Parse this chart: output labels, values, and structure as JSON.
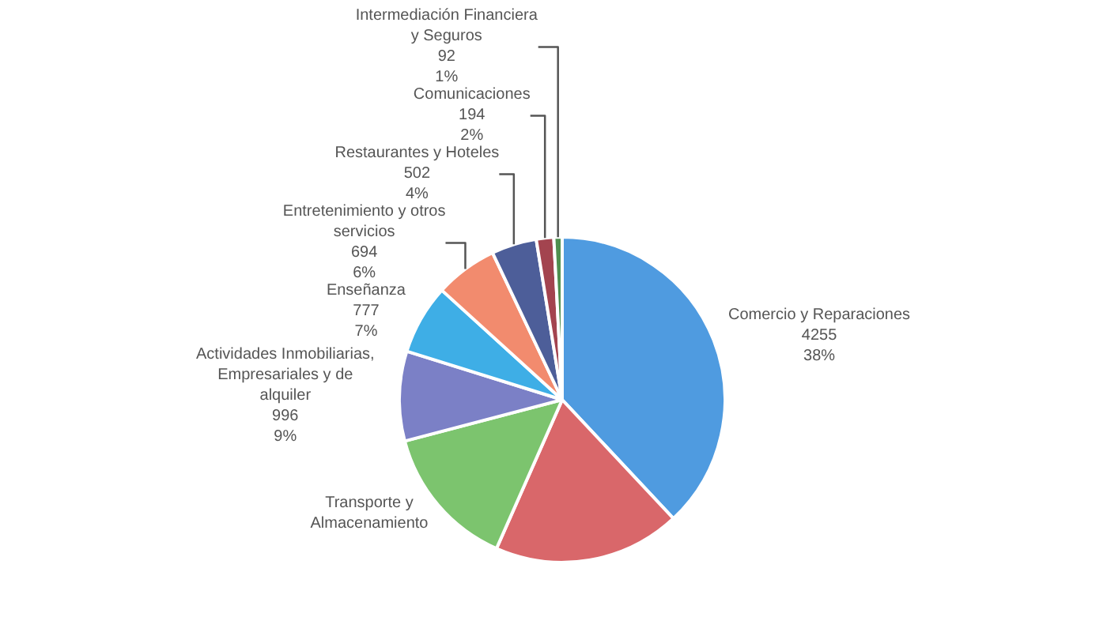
{
  "chart_data": {
    "type": "pie",
    "categories": [
      "Comercio y Reparaciones",
      null,
      "Transporte y Almacenamiento",
      "Actividades Inmobiliarias, Empresariales y de alquiler",
      "Enseñanza",
      "Entretenimiento y otros servicios",
      "Restaurantes y Hoteles",
      "Comunicaciones",
      "Intermediación Financiera y Seguros"
    ],
    "values": [
      4255,
      2080,
      1600,
      996,
      777,
      694,
      502,
      194,
      92
    ],
    "value_labels": [
      "4255\n38%",
      null,
      null,
      "996\n9%",
      "777\n7%",
      "694\n6%",
      "502\n4%",
      "194\n2%",
      "92\n1%"
    ],
    "colors": [
      "#4f9be0",
      "#d9676a",
      "#7cc46e",
      "#7b80c6",
      "#3eaee6",
      "#f28b6e",
      "#4d5e99",
      "#a3444f",
      "#4f8f4f"
    ],
    "legend": false
  }
}
